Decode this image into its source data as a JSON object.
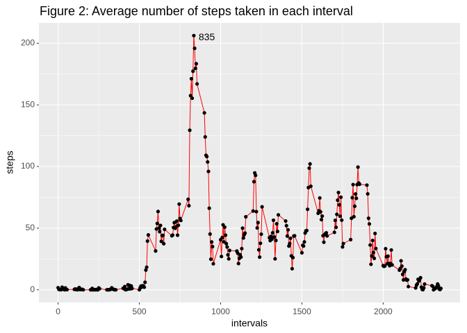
{
  "chart_data": {
    "type": "line",
    "title": "Figure 2: Average number of steps taken in each interval",
    "x_label": "intervals",
    "y_label": "steps",
    "line_color": "#ff0000",
    "point_color": "#000000",
    "grid": true,
    "xlim": [
      -118,
      2473
    ],
    "ylim": [
      -10.3,
      216.5
    ],
    "xticks": [
      0,
      500,
      1000,
      1500,
      2000
    ],
    "yticks": [
      0,
      50,
      100,
      150,
      200
    ],
    "annotation": {
      "label": "835",
      "x": 835,
      "y": 206.2
    },
    "x": [
      0,
      5,
      10,
      15,
      20,
      25,
      30,
      35,
      40,
      45,
      50,
      55,
      100,
      105,
      110,
      115,
      120,
      125,
      130,
      135,
      140,
      145,
      150,
      155,
      200,
      205,
      210,
      215,
      220,
      225,
      230,
      235,
      240,
      245,
      250,
      255,
      300,
      305,
      310,
      315,
      320,
      325,
      330,
      335,
      340,
      345,
      350,
      355,
      400,
      405,
      410,
      415,
      420,
      425,
      430,
      435,
      440,
      445,
      450,
      455,
      500,
      505,
      510,
      515,
      520,
      525,
      530,
      535,
      540,
      545,
      550,
      555,
      600,
      605,
      610,
      615,
      620,
      625,
      630,
      635,
      640,
      645,
      650,
      655,
      700,
      705,
      710,
      715,
      720,
      725,
      730,
      735,
      740,
      745,
      750,
      755,
      800,
      805,
      810,
      815,
      820,
      825,
      830,
      835,
      840,
      845,
      850,
      855,
      900,
      905,
      910,
      915,
      920,
      925,
      930,
      935,
      940,
      945,
      950,
      955,
      1000,
      1005,
      1010,
      1015,
      1020,
      1025,
      1030,
      1035,
      1040,
      1045,
      1050,
      1055,
      1100,
      1105,
      1110,
      1115,
      1120,
      1125,
      1130,
      1135,
      1140,
      1145,
      1150,
      1155,
      1200,
      1205,
      1210,
      1215,
      1220,
      1225,
      1230,
      1235,
      1240,
      1245,
      1250,
      1255,
      1300,
      1305,
      1310,
      1315,
      1320,
      1325,
      1330,
      1335,
      1340,
      1345,
      1350,
      1355,
      1400,
      1405,
      1410,
      1415,
      1420,
      1425,
      1430,
      1435,
      1440,
      1445,
      1450,
      1455,
      1500,
      1505,
      1510,
      1515,
      1520,
      1525,
      1530,
      1535,
      1540,
      1545,
      1550,
      1555,
      1600,
      1605,
      1610,
      1615,
      1620,
      1625,
      1630,
      1635,
      1640,
      1645,
      1650,
      1655,
      1700,
      1705,
      1710,
      1715,
      1720,
      1725,
      1730,
      1735,
      1740,
      1745,
      1750,
      1755,
      1800,
      1805,
      1810,
      1815,
      1820,
      1825,
      1830,
      1835,
      1840,
      1845,
      1850,
      1855,
      1900,
      1905,
      1910,
      1915,
      1920,
      1925,
      1930,
      1935,
      1940,
      1945,
      1950,
      1955,
      2000,
      2005,
      2010,
      2015,
      2020,
      2025,
      2030,
      2035,
      2040,
      2045,
      2050,
      2055,
      2100,
      2105,
      2110,
      2115,
      2120,
      2125,
      2130,
      2135,
      2140,
      2145,
      2150,
      2155,
      2200,
      2205,
      2210,
      2215,
      2220,
      2225,
      2230,
      2235,
      2240,
      2245,
      2250,
      2255,
      2300,
      2305,
      2310,
      2315,
      2320,
      2325,
      2330,
      2335,
      2340,
      2345,
      2350,
      2355
    ],
    "values": [
      1.7,
      0.3,
      0.1,
      0.2,
      0.1,
      2.1,
      0.5,
      0.9,
      0,
      1.5,
      0.3,
      0.1,
      0.3,
      0.7,
      0.2,
      0.3,
      0,
      1.1,
      1.8,
      0.2,
      0.2,
      0.4,
      0.3,
      0,
      0,
      0,
      1.1,
      0,
      0,
      0.1,
      0,
      0.2,
      0,
      0,
      1.5,
      0.9,
      0,
      0,
      0,
      0,
      0.2,
      0.6,
      1.6,
      0.6,
      0.5,
      0.1,
      0,
      0,
      1.2,
      0.9,
      2.6,
      0,
      0.3,
      0.4,
      4.1,
      0.7,
      3.5,
      0.8,
      3.1,
      1.1,
      0,
      1.6,
      3,
      2.2,
      3.3,
      3,
      2.1,
      6.1,
      16,
      18.3,
      39.5,
      44.5,
      31.5,
      49.3,
      53.8,
      63.5,
      50,
      47.1,
      52.2,
      39.3,
      44,
      44.2,
      37.4,
      49,
      43.8,
      44.4,
      50.5,
      54.5,
      49.9,
      51,
      55.7,
      44.3,
      52.3,
      69.5,
      57.8,
      56.2,
      73.4,
      68.2,
      129.4,
      157.5,
      171.2,
      155.4,
      177.3,
      206.2,
      195.9,
      179.6,
      183.4,
      167,
      143.5,
      124,
      109.1,
      108.1,
      103.7,
      96,
      66.2,
      45.2,
      24.8,
      38.8,
      35,
      21.1,
      40.6,
      27,
      42.4,
      52.7,
      38.9,
      50.8,
      44.3,
      37.4,
      34.7,
      28.3,
      25.1,
      31.9,
      31.4,
      29.7,
      21.3,
      25.5,
      28.4,
      26.5,
      33.4,
      50,
      42,
      44.6,
      46,
      59.2,
      63.9,
      87.7,
      94.8,
      92.8,
      63.4,
      50.2,
      54.5,
      32.4,
      26.5,
      37.7,
      45.1,
      67.3,
      42.3,
      39.9,
      43.3,
      41,
      46.2,
      56.4,
      42.8,
      25.1,
      40,
      53.5,
      47.3,
      60.8,
      55.8,
      52,
      43.6,
      48.7,
      35.5,
      37.5,
      41.8,
      27.5,
      17.1,
      26.1,
      43.6,
      43.8,
      30,
      36.1,
      35.5,
      38.8,
      46,
      47.8,
      48.1,
      65.3,
      82.9,
      98.7,
      102.1,
      84,
      62.1,
      64.1,
      74.5,
      63.2,
      56.9,
      59.8,
      43.9,
      38.6,
      44.7,
      45.5,
      46.2,
      43.7,
      46.6,
      56.3,
      50.7,
      61.2,
      72.7,
      78.9,
      68.9,
      59.7,
      75.1,
      56.5,
      34.8,
      37.5,
      40.7,
      58,
      74.7,
      85.3,
      59.3,
      67.8,
      77.7,
      74.2,
      85.3,
      99.5,
      86.6,
      85.6,
      84.9,
      77.8,
      58,
      53.4,
      36.3,
      20.7,
      27.4,
      40,
      30.2,
      25.5,
      45.7,
      33.5,
      19.6,
      19,
      19.3,
      33.3,
      26.8,
      21.2,
      27.3,
      21.3,
      19.5,
      21.3,
      32.3,
      20.2,
      15.9,
      17.2,
      23.5,
      19.2,
      12.5,
      8,
      14.7,
      16.3,
      8.7,
      7.8,
      8.1,
      2.6,
      1.5,
      3.7,
      4.8,
      8.5,
      7.1,
      8.7,
      9.8,
      2.2,
      0.3,
      0.1,
      1.6,
      4.6,
      3.3,
      2.8,
      0,
      0.8,
      1,
      1.6,
      2.6,
      4.7,
      3.3,
      0.6,
      0.2,
      1.1
    ]
  }
}
